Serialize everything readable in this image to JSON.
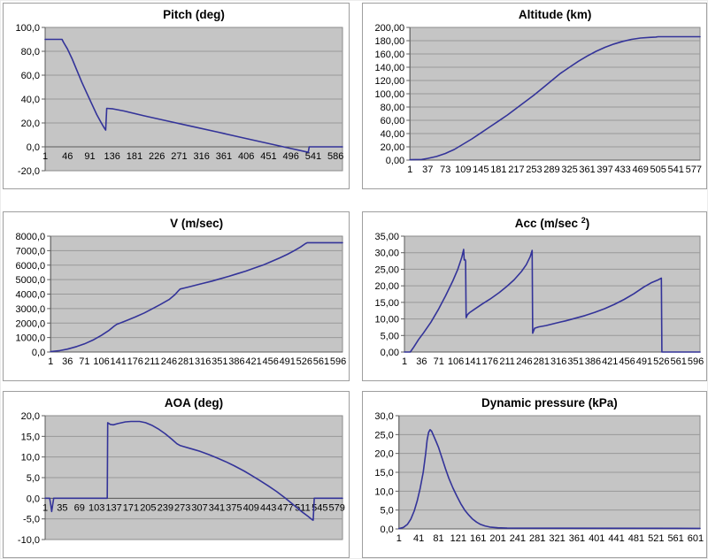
{
  "colors": {
    "series_line": "#333399",
    "plot_area_fill": "#c5c5c5",
    "gridline": "#999999",
    "axis_line": "#5c5c5c",
    "plot_border": "#8a8a8a",
    "chart_border": "#9e9e9e",
    "text": "#000000",
    "chart_bg": "#ffffff"
  },
  "chart_data": [
    {
      "type": "line",
      "title": "Pitch (deg)",
      "title_sup": "",
      "title_tail": "",
      "ylim": [
        -20,
        100
      ],
      "y_step": 20,
      "y_tick_labels": [
        "100,0",
        "80,0",
        "60,0",
        "40,0",
        "20,0",
        "0,0",
        "-20,0"
      ],
      "x_tick_labels": [
        "1",
        "46",
        "91",
        "136",
        "181",
        "226",
        "271",
        "316",
        "361",
        "406",
        "451",
        "496",
        "541",
        "586"
      ],
      "x_max": 600,
      "axis_cross": 0,
      "x_labels_inside": true,
      "grid": true,
      "legend": "none",
      "points": [
        [
          1,
          90
        ],
        [
          35,
          90
        ],
        [
          38,
          87.5
        ],
        [
          46,
          82
        ],
        [
          55,
          74
        ],
        [
          65,
          64
        ],
        [
          75,
          54
        ],
        [
          85,
          45
        ],
        [
          95,
          36
        ],
        [
          105,
          27
        ],
        [
          113,
          21
        ],
        [
          119,
          16.5
        ],
        [
          123,
          14
        ],
        [
          125,
          32.2
        ],
        [
          138,
          31.8
        ],
        [
          160,
          30
        ],
        [
          200,
          26
        ],
        [
          250,
          21.4
        ],
        [
          300,
          16.8
        ],
        [
          350,
          12.2
        ],
        [
          400,
          7.5
        ],
        [
          450,
          2.9
        ],
        [
          490,
          -0.8
        ],
        [
          515,
          -3.1
        ],
        [
          531,
          -4.6
        ],
        [
          533,
          0
        ],
        [
          600,
          0
        ]
      ]
    },
    {
      "type": "line",
      "title": "Altitude (km)",
      "title_sup": "",
      "title_tail": "",
      "ylim": [
        0,
        200
      ],
      "y_step": 20,
      "y_tick_labels": [
        "200,00",
        "180,00",
        "160,00",
        "140,00",
        "120,00",
        "100,00",
        "80,00",
        "60,00",
        "40,00",
        "20,00",
        "0,00"
      ],
      "x_tick_labels": [
        "1",
        "37",
        "73",
        "109",
        "145",
        "181",
        "217",
        "253",
        "289",
        "325",
        "361",
        "397",
        "433",
        "469",
        "505",
        "541",
        "577"
      ],
      "x_max": 590,
      "axis_cross": 0,
      "x_labels_inside": false,
      "grid": true,
      "legend": "none",
      "points": [
        [
          1,
          0.5
        ],
        [
          25,
          1
        ],
        [
          37,
          2.5
        ],
        [
          55,
          5.5
        ],
        [
          73,
          10
        ],
        [
          91,
          16
        ],
        [
          109,
          24
        ],
        [
          127,
          32
        ],
        [
          145,
          41
        ],
        [
          163,
          50
        ],
        [
          181,
          59
        ],
        [
          199,
          68
        ],
        [
          217,
          78
        ],
        [
          235,
          88
        ],
        [
          253,
          98
        ],
        [
          271,
          109
        ],
        [
          289,
          120
        ],
        [
          307,
          131
        ],
        [
          325,
          140
        ],
        [
          343,
          149
        ],
        [
          361,
          157
        ],
        [
          379,
          164
        ],
        [
          397,
          170
        ],
        [
          415,
          175
        ],
        [
          433,
          179
        ],
        [
          451,
          182
        ],
        [
          469,
          184
        ],
        [
          487,
          185
        ],
        [
          500,
          185.5
        ],
        [
          505,
          186
        ],
        [
          590,
          186
        ]
      ]
    },
    {
      "type": "line",
      "title": "V (m/sec)",
      "title_sup": "",
      "title_tail": "",
      "ylim": [
        0,
        8000
      ],
      "y_step": 1000,
      "y_tick_labels": [
        "8000,0",
        "7000,0",
        "6000,0",
        "5000,0",
        "4000,0",
        "3000,0",
        "2000,0",
        "1000,0",
        "0,0"
      ],
      "x_tick_labels": [
        "1",
        "36",
        "71",
        "106",
        "141",
        "176",
        "211",
        "246",
        "281",
        "316",
        "351",
        "386",
        "421",
        "456",
        "491",
        "526",
        "561",
        "596"
      ],
      "x_max": 605,
      "axis_cross": 0,
      "x_labels_inside": false,
      "grid": true,
      "legend": "none",
      "points": [
        [
          1,
          30
        ],
        [
          20,
          100
        ],
        [
          36,
          200
        ],
        [
          55,
          380
        ],
        [
          71,
          560
        ],
        [
          90,
          850
        ],
        [
          106,
          1150
        ],
        [
          122,
          1500
        ],
        [
          133,
          1800
        ],
        [
          138,
          1920
        ],
        [
          145,
          2000
        ],
        [
          160,
          2200
        ],
        [
          176,
          2420
        ],
        [
          195,
          2700
        ],
        [
          211,
          2980
        ],
        [
          228,
          3280
        ],
        [
          246,
          3620
        ],
        [
          258,
          3950
        ],
        [
          266,
          4250
        ],
        [
          269,
          4350
        ],
        [
          278,
          4420
        ],
        [
          290,
          4520
        ],
        [
          305,
          4650
        ],
        [
          316,
          4740
        ],
        [
          335,
          4900
        ],
        [
          351,
          5050
        ],
        [
          370,
          5230
        ],
        [
          386,
          5390
        ],
        [
          405,
          5590
        ],
        [
          421,
          5780
        ],
        [
          440,
          6000
        ],
        [
          456,
          6220
        ],
        [
          475,
          6500
        ],
        [
          491,
          6750
        ],
        [
          505,
          7000
        ],
        [
          518,
          7250
        ],
        [
          528,
          7480
        ],
        [
          532,
          7550
        ],
        [
          605,
          7550
        ]
      ]
    },
    {
      "type": "line",
      "title": "Acc (m/sec ",
      "title_sup": "2",
      "title_tail": ")",
      "ylim": [
        0,
        35
      ],
      "y_step": 5,
      "y_tick_labels": [
        "35,00",
        "30,00",
        "25,00",
        "20,00",
        "15,00",
        "10,00",
        "5,00",
        "0,00"
      ],
      "x_tick_labels": [
        "1",
        "36",
        "71",
        "106",
        "141",
        "176",
        "211",
        "246",
        "281",
        "316",
        "351",
        "386",
        "421",
        "456",
        "491",
        "526",
        "561",
        "596"
      ],
      "x_max": 605,
      "axis_cross": 0,
      "x_labels_inside": false,
      "grid": true,
      "legend": "none",
      "points": [
        [
          1,
          0
        ],
        [
          13,
          0
        ],
        [
          20,
          1.5
        ],
        [
          30,
          3.8
        ],
        [
          40,
          5.8
        ],
        [
          55,
          9
        ],
        [
          71,
          13
        ],
        [
          85,
          17
        ],
        [
          100,
          21.5
        ],
        [
          110,
          25
        ],
        [
          118,
          28.5
        ],
        [
          122,
          31
        ],
        [
          123,
          27.8
        ],
        [
          125,
          27.9
        ],
        [
          126,
          27.5
        ],
        [
          127,
          10.4
        ],
        [
          130,
          11.3
        ],
        [
          134,
          11.9
        ],
        [
          145,
          13
        ],
        [
          160,
          14.5
        ],
        [
          176,
          16
        ],
        [
          195,
          18
        ],
        [
          210,
          19.8
        ],
        [
          225,
          21.8
        ],
        [
          240,
          24.3
        ],
        [
          250,
          26.4
        ],
        [
          258,
          28.8
        ],
        [
          262,
          30.7
        ],
        [
          263,
          5.7
        ],
        [
          267,
          7.2
        ],
        [
          275,
          7.6
        ],
        [
          290,
          8
        ],
        [
          310,
          8.7
        ],
        [
          330,
          9.4
        ],
        [
          350,
          10.2
        ],
        [
          370,
          11
        ],
        [
          390,
          12
        ],
        [
          410,
          13.1
        ],
        [
          430,
          14.4
        ],
        [
          450,
          15.9
        ],
        [
          470,
          17.6
        ],
        [
          490,
          19.6
        ],
        [
          505,
          20.9
        ],
        [
          518,
          21.7
        ],
        [
          526,
          22.3
        ],
        [
          527,
          0
        ],
        [
          605,
          0
        ]
      ]
    },
    {
      "type": "line",
      "title": "AOA (deg)",
      "title_sup": "",
      "title_tail": "",
      "ylim": [
        -10,
        20
      ],
      "y_step": 5,
      "y_tick_labels": [
        "20,0",
        "15,0",
        "10,0",
        "5,0",
        "0,0",
        "-5,0",
        "-10,0"
      ],
      "x_tick_labels": [
        "1",
        "35",
        "69",
        "103",
        "137",
        "171",
        "205",
        "239",
        "273",
        "307",
        "341",
        "375",
        "409",
        "443",
        "477",
        "511",
        "545",
        "579"
      ],
      "x_max": 590,
      "axis_cross": 0,
      "x_labels_inside": true,
      "grid": true,
      "legend": "none",
      "points": [
        [
          1,
          0
        ],
        [
          10,
          0
        ],
        [
          12,
          -1.5
        ],
        [
          14,
          -3.2
        ],
        [
          16,
          -1.5
        ],
        [
          18,
          0
        ],
        [
          124,
          0
        ],
        [
          125,
          18.3
        ],
        [
          130,
          17.9
        ],
        [
          136,
          17.8
        ],
        [
          145,
          18.1
        ],
        [
          160,
          18.5
        ],
        [
          171,
          18.6
        ],
        [
          188,
          18.6
        ],
        [
          200,
          18.3
        ],
        [
          212,
          17.7
        ],
        [
          225,
          16.8
        ],
        [
          239,
          15.6
        ],
        [
          252,
          14.3
        ],
        [
          262,
          13.2
        ],
        [
          268,
          12.8
        ],
        [
          273,
          12.6
        ],
        [
          290,
          12
        ],
        [
          307,
          11.4
        ],
        [
          325,
          10.6
        ],
        [
          341,
          9.8
        ],
        [
          360,
          8.8
        ],
        [
          375,
          7.9
        ],
        [
          395,
          6.6
        ],
        [
          409,
          5.6
        ],
        [
          425,
          4.4
        ],
        [
          443,
          3
        ],
        [
          460,
          1.6
        ],
        [
          477,
          0
        ],
        [
          495,
          -1.8
        ],
        [
          511,
          -3.4
        ],
        [
          522,
          -4.4
        ],
        [
          530,
          -5.2
        ],
        [
          532,
          -5.3
        ],
        [
          534,
          0
        ],
        [
          590,
          0
        ]
      ]
    },
    {
      "type": "line",
      "title": "Dynamic pressure (kPa)",
      "title_sup": "",
      "title_tail": "",
      "ylim": [
        0,
        30
      ],
      "y_step": 5,
      "y_tick_labels": [
        "30,0",
        "25,0",
        "20,0",
        "15,0",
        "10,0",
        "5,0",
        "0,0"
      ],
      "x_tick_labels": [
        "1",
        "41",
        "81",
        "121",
        "161",
        "201",
        "241",
        "281",
        "321",
        "361",
        "401",
        "441",
        "481",
        "521",
        "561",
        "601"
      ],
      "x_max": 610,
      "axis_cross": 0,
      "x_labels_inside": false,
      "grid": true,
      "legend": "none",
      "points": [
        [
          1,
          0.1
        ],
        [
          10,
          0.4
        ],
        [
          18,
          1.2
        ],
        [
          25,
          2.6
        ],
        [
          32,
          4.8
        ],
        [
          38,
          7.5
        ],
        [
          44,
          10.8
        ],
        [
          50,
          15
        ],
        [
          55,
          20
        ],
        [
          58,
          23.5
        ],
        [
          61,
          25.6
        ],
        [
          64,
          26.3
        ],
        [
          67,
          25.9
        ],
        [
          71,
          24.7
        ],
        [
          76,
          23.2
        ],
        [
          81,
          21.6
        ],
        [
          88,
          18.8
        ],
        [
          95,
          16
        ],
        [
          102,
          13.4
        ],
        [
          110,
          10.9
        ],
        [
          118,
          8.7
        ],
        [
          126,
          6.7
        ],
        [
          134,
          5
        ],
        [
          142,
          3.7
        ],
        [
          150,
          2.6
        ],
        [
          158,
          1.8
        ],
        [
          166,
          1.2
        ],
        [
          175,
          0.8
        ],
        [
          185,
          0.5
        ],
        [
          201,
          0.3
        ],
        [
          220,
          0.2
        ],
        [
          610,
          0.15
        ]
      ]
    }
  ]
}
